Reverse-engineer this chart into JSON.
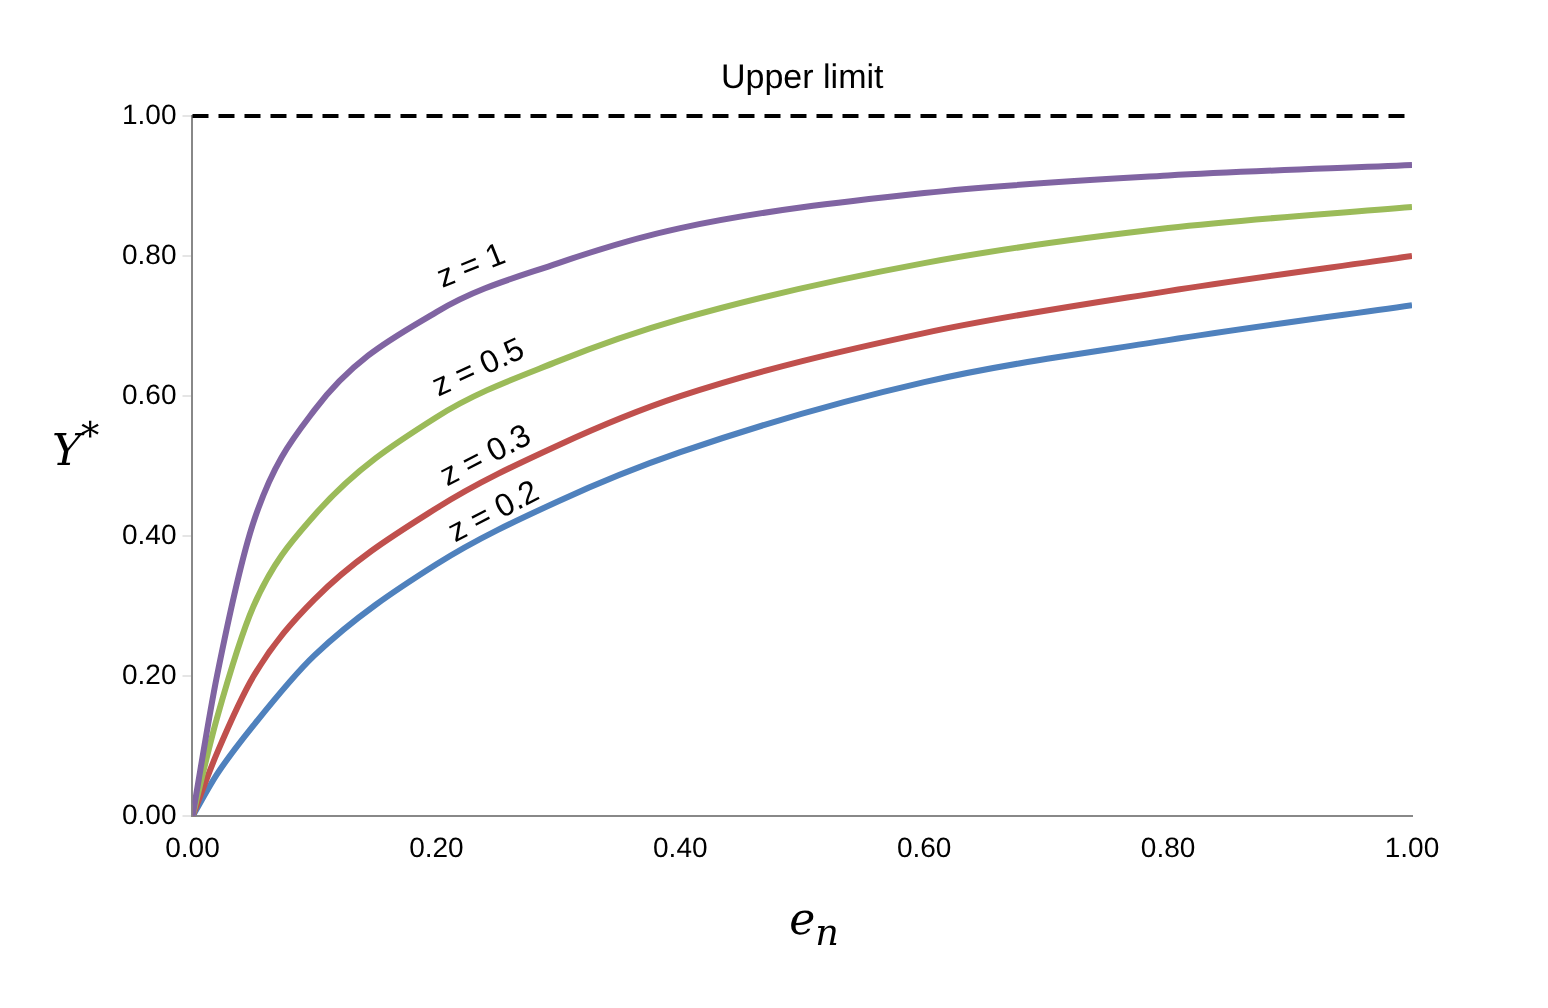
{
  "chart_data": {
    "type": "line",
    "xlabel": "e$_{n}$",
    "ylabel": "Y$^{*}$",
    "x": [
      0,
      0.02,
      0.05,
      0.1,
      0.2,
      0.3,
      0.4,
      0.6,
      0.8,
      1
    ],
    "series": [
      {
        "name": "z = 1",
        "color": "#8064a2",
        "values": [
          0,
          0.2,
          0.42,
          0.58,
          0.72,
          0.79,
          0.84,
          0.89,
          0.915,
          0.93
        ]
      },
      {
        "name": "z = 0.5",
        "color": "#9bbb59",
        "values": [
          0,
          0.14,
          0.3,
          0.43,
          0.57,
          0.65,
          0.71,
          0.79,
          0.84,
          0.87
        ]
      },
      {
        "name": "z = 0.3",
        "color": "#c0504d",
        "values": [
          0,
          0.09,
          0.2,
          0.31,
          0.44,
          0.53,
          0.6,
          0.69,
          0.75,
          0.8
        ]
      },
      {
        "name": "z = 0.2",
        "color": "#4f81bd",
        "values": [
          0,
          0.06,
          0.13,
          0.23,
          0.36,
          0.45,
          0.52,
          0.62,
          0.68,
          0.73
        ]
      }
    ],
    "xlim": [
      0,
      1
    ],
    "ylim": [
      0,
      1
    ],
    "xticks": [
      {
        "value": 0,
        "label": "0.00"
      },
      {
        "value": 0.2,
        "label": "0.20"
      },
      {
        "value": 0.4,
        "label": "0.40"
      },
      {
        "value": 0.6,
        "label": "0.60"
      },
      {
        "value": 0.8,
        "label": "0.80"
      },
      {
        "value": 1,
        "label": "1.00"
      }
    ],
    "yticks": [
      {
        "value": 0,
        "label": "0.00"
      },
      {
        "value": 0.2,
        "label": "0.20"
      },
      {
        "value": 0.4,
        "label": "0.40"
      },
      {
        "value": 0.6,
        "label": "0.60"
      },
      {
        "value": 0.8,
        "label": "0.80"
      },
      {
        "value": 1,
        "label": "1.00"
      }
    ],
    "ref_lines": [
      {
        "axis": "y",
        "value": 1,
        "label": "Upper limit",
        "color": "#000000",
        "line_style": "dashed"
      }
    ],
    "grid": false,
    "legend": false,
    "marker": "none",
    "line_style": "solid"
  }
}
